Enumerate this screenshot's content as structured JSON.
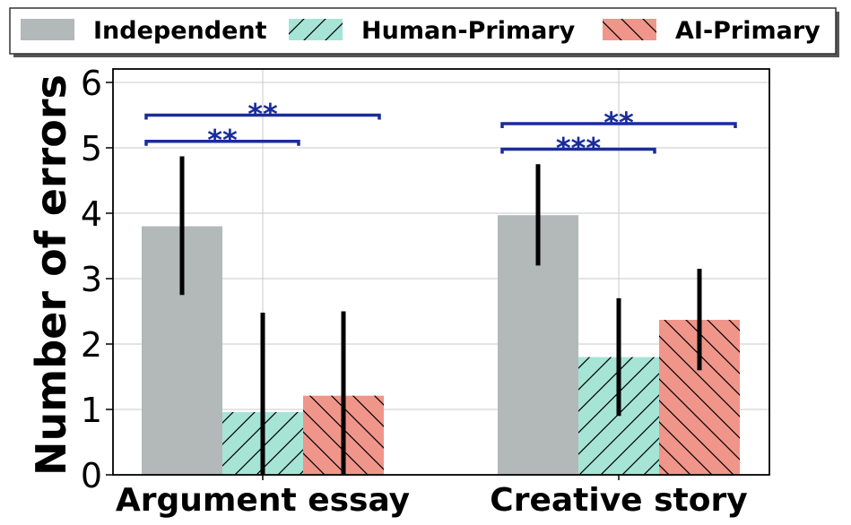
{
  "chart_data": {
    "type": "bar",
    "title": "",
    "xlabel": "",
    "ylabel": "Number of errors",
    "ylim": [
      0,
      6.2
    ],
    "yticks": [
      0,
      1,
      2,
      3,
      4,
      5,
      6
    ],
    "grid": true,
    "legend_position": "top",
    "categories": [
      "Argument essay",
      "Creative story"
    ],
    "series": [
      {
        "name": "Independent",
        "values": [
          3.8,
          3.97
        ],
        "err_low": [
          2.75,
          3.2
        ],
        "err_high": [
          4.87,
          4.75
        ],
        "color": "#b3b8b8",
        "hatch": "none"
      },
      {
        "name": "Human-Primary",
        "values": [
          0.96,
          1.8
        ],
        "err_low": [
          0.0,
          0.9
        ],
        "err_high": [
          2.48,
          2.7
        ],
        "color": "#a6e4d6",
        "hatch": "forward"
      },
      {
        "name": "AI-Primary",
        "values": [
          1.21,
          2.37
        ],
        "err_low": [
          0.0,
          1.6
        ],
        "err_high": [
          2.5,
          3.15
        ],
        "color": "#f0958a",
        "hatch": "back"
      }
    ],
    "significance": [
      {
        "category": 0,
        "from": 0,
        "to": 1,
        "y": 5.1,
        "label": "**"
      },
      {
        "category": 0,
        "from": 0,
        "to": 2,
        "y": 5.5,
        "label": "**"
      },
      {
        "category": 1,
        "from": 0,
        "to": 1,
        "y": 4.98,
        "label": "***"
      },
      {
        "category": 1,
        "from": 0,
        "to": 2,
        "y": 5.37,
        "label": "**"
      }
    ],
    "significance_color": "#1a2c9c"
  }
}
